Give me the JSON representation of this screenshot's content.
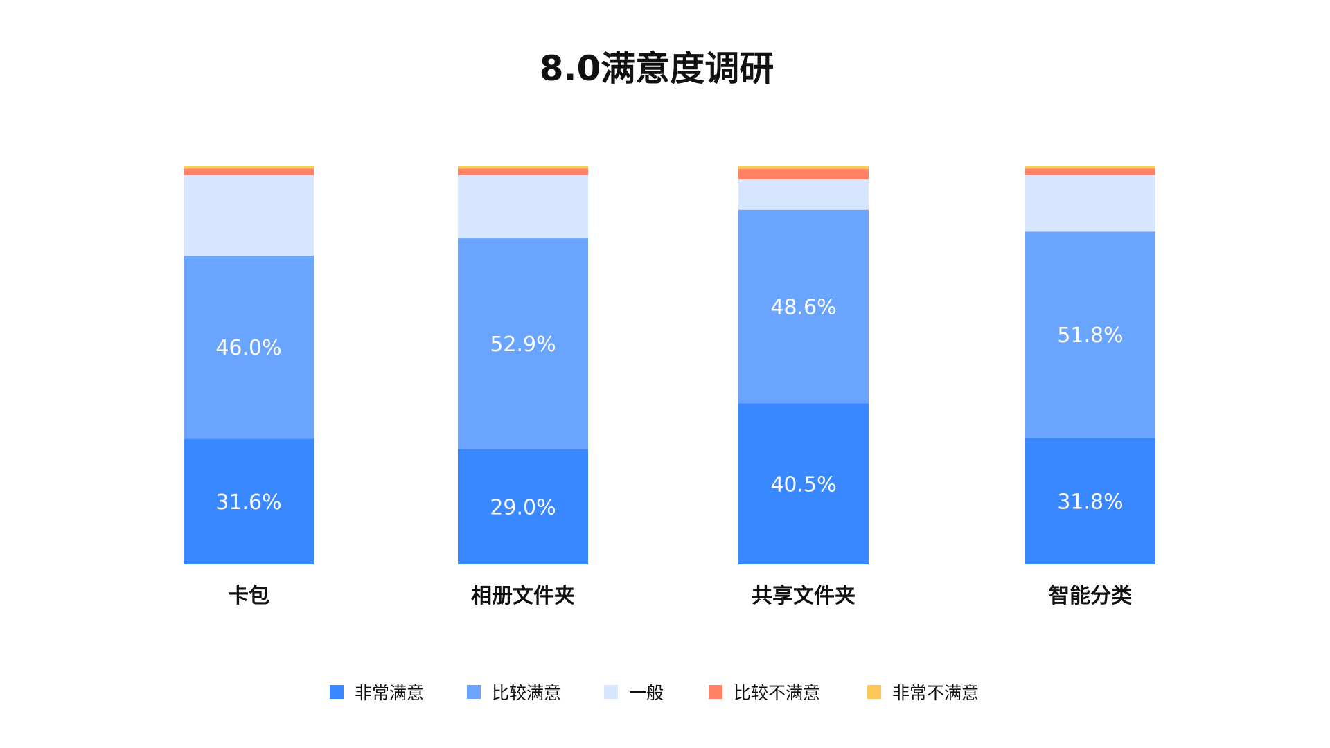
{
  "chart_data": {
    "type": "bar",
    "stacked": true,
    "title": "8.0满意度调研",
    "categories": [
      "卡包",
      "相册文件夹",
      "共享文件夹",
      "智能分类"
    ],
    "series": [
      {
        "name": "非常满意",
        "color": "#3988FF",
        "values": [
          31.6,
          29.0,
          40.5,
          31.8
        ],
        "labels": [
          "31.6%",
          "29.0%",
          "40.5%",
          "31.8%"
        ]
      },
      {
        "name": "比较满意",
        "color": "#69A5FF",
        "values": [
          46.0,
          52.9,
          48.6,
          51.8
        ],
        "labels": [
          "46.0%",
          "52.9%",
          "48.6%",
          "51.8%"
        ]
      },
      {
        "name": "一般",
        "color": "#D6E6FF",
        "values": [
          20.2,
          15.9,
          7.6,
          14.2
        ]
      },
      {
        "name": "比较不满意",
        "color": "#FF8364",
        "values": [
          1.6,
          1.6,
          2.6,
          1.6
        ]
      },
      {
        "name": "非常不满意",
        "color": "#FFC85A",
        "values": [
          0.6,
          0.6,
          0.7,
          0.6
        ]
      }
    ],
    "ylim": [
      0,
      100
    ],
    "grid": false,
    "legend": "bottom"
  }
}
